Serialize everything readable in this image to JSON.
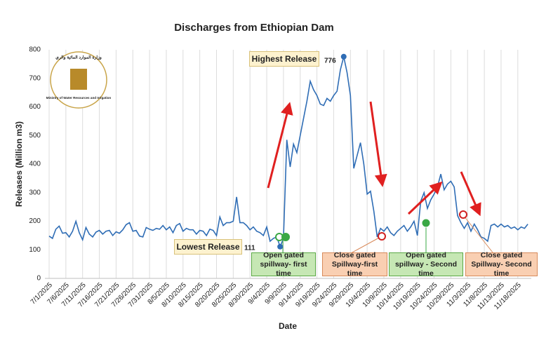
{
  "chart_data": {
    "type": "line",
    "title": "Discharges from Ethiopian Dam",
    "x_label": "Date",
    "y_label": "Releases (Million m3)",
    "color": "#2f6db5",
    "ylim": [
      0,
      800
    ],
    "yticks": [
      0,
      100,
      200,
      300,
      400,
      500,
      600,
      700,
      800
    ],
    "grid": true,
    "categories": [
      "7/1/2025",
      null,
      null,
      null,
      null,
      "7/6/2025",
      null,
      null,
      null,
      null,
      "7/11/2025",
      null,
      null,
      null,
      null,
      "7/16/2025",
      null,
      null,
      null,
      null,
      "7/21/2025",
      null,
      null,
      null,
      null,
      "7/26/2025",
      null,
      null,
      null,
      null,
      "7/31/2025",
      null,
      null,
      null,
      null,
      "8/5/2025",
      null,
      null,
      null,
      null,
      "8/10/2025",
      null,
      null,
      null,
      null,
      "8/15/2025",
      null,
      null,
      null,
      null,
      "8/20/2025",
      null,
      null,
      null,
      null,
      "8/25/2025",
      null,
      null,
      null,
      null,
      "8/30/2025",
      null,
      null,
      null,
      null,
      "9/4/2025",
      null,
      null,
      null,
      null,
      "9/9/2025",
      null,
      null,
      null,
      null,
      "9/14/2025",
      null,
      null,
      null,
      null,
      "9/19/2025",
      null,
      null,
      null,
      null,
      "9/24/2025",
      null,
      null,
      null,
      null,
      "9/29/2025",
      null,
      null,
      null,
      null,
      "10/4/2025",
      null,
      null,
      null,
      null,
      "10/9/2025",
      null,
      null,
      null,
      null,
      "10/14/2025",
      null,
      null,
      null,
      null,
      "10/19/2025",
      null,
      null,
      null,
      null,
      "10/24/2025",
      null,
      null,
      null,
      null,
      "10/29/2025",
      null,
      null,
      null,
      null,
      "11/3/2025",
      null,
      null,
      null,
      null,
      "11/8/2025",
      null,
      null,
      null,
      null,
      "11/13/2025",
      null,
      null,
      null,
      null,
      "11/18/2025",
      null,
      null,
      null
    ],
    "values": [
      148,
      140,
      172,
      183,
      158,
      160,
      145,
      165,
      200,
      160,
      135,
      178,
      155,
      145,
      162,
      168,
      155,
      165,
      168,
      150,
      163,
      158,
      170,
      188,
      195,
      165,
      168,
      148,
      145,
      178,
      172,
      168,
      175,
      172,
      185,
      170,
      180,
      160,
      185,
      192,
      165,
      175,
      170,
      170,
      155,
      168,
      165,
      150,
      172,
      168,
      150,
      215,
      185,
      195,
      195,
      200,
      285,
      195,
      195,
      185,
      170,
      180,
      165,
      160,
      150,
      180,
      130,
      140,
      145,
      111,
      140,
      485,
      390,
      470,
      440,
      500,
      560,
      620,
      690,
      660,
      640,
      610,
      605,
      630,
      620,
      640,
      655,
      730,
      776,
      720,
      640,
      385,
      430,
      475,
      400,
      295,
      305,
      235,
      145,
      175,
      165,
      180,
      160,
      150,
      165,
      175,
      185,
      165,
      180,
      200,
      150,
      270,
      300,
      245,
      275,
      295,
      320,
      365,
      310,
      330,
      340,
      320,
      220,
      195,
      175,
      195,
      165,
      190,
      170,
      145,
      140,
      130,
      185,
      190,
      180,
      190,
      180,
      185,
      175,
      180,
      170,
      180,
      175,
      190
    ],
    "annotations": {
      "highest": "Highest Release",
      "lowest": "Lowest Release",
      "open_first": "Open gated spillway- first time",
      "close_first": "Close gated Spillway-first time",
      "open_second": "Open gated spillway - Second time",
      "close_second": "Close gated Spillway- Second time"
    },
    "logo": {
      "arabic": "وزارة الموارد المائية والري",
      "english": "Ministry of Water Resources and Irrigation"
    }
  }
}
